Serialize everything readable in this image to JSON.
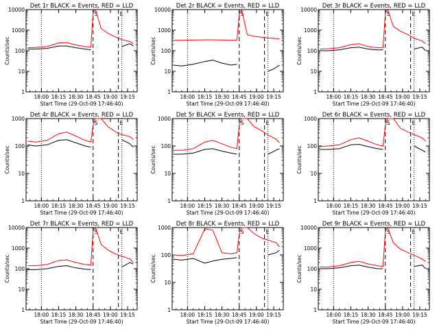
{
  "colors": {
    "events": "#000000",
    "lld": "#ff0000",
    "axis": "#000000",
    "background": "#ffffff"
  },
  "panels_shared": {
    "xlabel": "Start Time (29-Oct-09 17:46:40)",
    "ylabel": "Counts/sec",
    "x_tick_labels": [
      "18:00",
      "18:15",
      "18:30",
      "18:45",
      "19:00",
      "19:15"
    ],
    "y_tick_labels": [
      "1",
      "10",
      "100",
      "1000",
      "10000"
    ],
    "saa_markers": [
      "S",
      "E"
    ]
  },
  "chart_data": [
    {
      "type": "line",
      "title": "Det 1r BLACK = Events, RED = LLD",
      "ylim": [
        1,
        10000
      ],
      "yscale": "log",
      "xlim": [
        "17:46:40",
        "19:23:20"
      ],
      "x": [
        "17:48",
        "17:55",
        "18:05",
        "18:15",
        "18:22",
        "18:30",
        "18:38",
        "18:43",
        "18:45",
        "18:47",
        "18:52",
        "18:58",
        "19:05",
        "19:10",
        "19:17",
        "19:20"
      ],
      "series": [
        {
          "name": "Events",
          "values": [
            120,
            120,
            130,
            170,
            170,
            140,
            120,
            110,
            null,
            null,
            null,
            null,
            null,
            160,
            220,
            170
          ]
        },
        {
          "name": "LLD",
          "values": [
            140,
            145,
            160,
            240,
            250,
            190,
            160,
            150,
            7000,
            10000,
            1200,
            700,
            450,
            350,
            280,
            220
          ]
        }
      ],
      "dashed_lines": [
        "18:45",
        "19:07"
      ],
      "dotted_lines": [
        "18:00",
        "19:10"
      ]
    },
    {
      "type": "line",
      "title": "Det 2r BLACK = Events, RED = LLD",
      "ylim": [
        1,
        10000
      ],
      "yscale": "log",
      "xlim": [
        "17:46:40",
        "19:23:20"
      ],
      "x": [
        "17:48",
        "17:55",
        "18:05",
        "18:15",
        "18:22",
        "18:30",
        "18:38",
        "18:43",
        "18:45",
        "18:47",
        "18:52",
        "18:58",
        "19:05",
        "19:10",
        "19:15",
        "19:20"
      ],
      "series": [
        {
          "name": "Events",
          "values": [
            20,
            18,
            22,
            30,
            35,
            25,
            20,
            22,
            null,
            null,
            null,
            null,
            null,
            10,
            13,
            20
          ]
        },
        {
          "name": "LLD",
          "values": [
            320,
            320,
            330,
            340,
            340,
            330,
            320,
            330,
            6000,
            10000,
            600,
            500,
            450,
            420,
            400,
            380
          ]
        }
      ],
      "dashed_lines": [
        "18:45",
        "19:07"
      ],
      "dotted_lines": [
        "18:00",
        "19:10"
      ]
    },
    {
      "type": "line",
      "title": "Det 3r BLACK = Events, RED = LLD",
      "ylim": [
        1,
        10000
      ],
      "yscale": "log",
      "xlim": [
        "17:46:40",
        "19:23:20"
      ],
      "x": [
        "17:48",
        "17:55",
        "18:05",
        "18:15",
        "18:22",
        "18:30",
        "18:38",
        "18:43",
        "18:45",
        "18:47",
        "18:52",
        "18:58",
        "19:05",
        "19:10",
        "19:17",
        "19:20"
      ],
      "series": [
        {
          "name": "Events",
          "values": [
            100,
            100,
            110,
            140,
            150,
            120,
            110,
            110,
            null,
            null,
            null,
            null,
            null,
            120,
            150,
            100
          ]
        },
        {
          "name": "LLD",
          "values": [
            120,
            125,
            140,
            200,
            220,
            160,
            140,
            140,
            7000,
            10000,
            1500,
            900,
            600,
            400,
            300,
            220
          ]
        }
      ],
      "dashed_lines": [
        "18:45",
        "19:07"
      ],
      "dotted_lines": [
        "18:00",
        "19:10"
      ]
    },
    {
      "type": "line",
      "title": "Det 4r BLACK = Events, RED = LLD",
      "ylim": [
        1,
        1000
      ],
      "yscale": "log",
      "xlim": [
        "17:46:40",
        "19:23:20"
      ],
      "x": [
        "17:48",
        "17:55",
        "18:05",
        "18:15",
        "18:22",
        "18:30",
        "18:38",
        "18:43",
        "18:45",
        "18:47",
        "18:52",
        "18:58",
        "19:05",
        "19:10",
        "19:17",
        "19:20"
      ],
      "series": [
        {
          "name": "Events",
          "values": [
            110,
            100,
            110,
            160,
            170,
            130,
            100,
            90,
            null,
            null,
            null,
            null,
            null,
            170,
            120,
            90
          ]
        },
        {
          "name": "LLD",
          "values": [
            150,
            140,
            160,
            280,
            320,
            230,
            160,
            140,
            600,
            1000,
            1000,
            500,
            320,
            260,
            220,
            170
          ]
        }
      ],
      "dashed_lines": [
        "18:45",
        "19:07"
      ],
      "dotted_lines": [
        "18:00",
        "19:10"
      ]
    },
    {
      "type": "line",
      "title": "Det 5r BLACK = Events, RED = LLD",
      "ylim": [
        1,
        1000
      ],
      "yscale": "log",
      "xlim": [
        "17:46:40",
        "19:23:20"
      ],
      "x": [
        "17:48",
        "17:55",
        "18:05",
        "18:15",
        "18:22",
        "18:30",
        "18:38",
        "18:43",
        "18:45",
        "18:47",
        "18:52",
        "18:58",
        "19:05",
        "19:10",
        "19:17",
        "19:20"
      ],
      "series": [
        {
          "name": "Events",
          "values": [
            50,
            50,
            55,
            75,
            80,
            65,
            55,
            50,
            null,
            null,
            null,
            null,
            null,
            50,
            70,
            80
          ]
        },
        {
          "name": "LLD",
          "values": [
            70,
            70,
            80,
            140,
            160,
            120,
            90,
            80,
            600,
            1000,
            1000,
            500,
            350,
            250,
            180,
            130
          ]
        }
      ],
      "dashed_lines": [
        "18:45",
        "19:07"
      ],
      "dotted_lines": [
        "18:00",
        "19:10"
      ]
    },
    {
      "type": "line",
      "title": "Det 6r BLACK = Events, RED = LLD",
      "ylim": [
        1,
        1000
      ],
      "yscale": "log",
      "xlim": [
        "17:46:40",
        "19:23:20"
      ],
      "x": [
        "17:48",
        "17:55",
        "18:05",
        "18:15",
        "18:22",
        "18:30",
        "18:38",
        "18:43",
        "18:45",
        "18:47",
        "18:52",
        "18:58",
        "19:05",
        "19:10",
        "19:17",
        "19:20"
      ],
      "series": [
        {
          "name": "Events",
          "values": [
            75,
            75,
            80,
            110,
            115,
            95,
            80,
            75,
            null,
            null,
            null,
            null,
            null,
            100,
            70,
            60
          ]
        },
        {
          "name": "LLD",
          "values": [
            95,
            100,
            110,
            170,
            200,
            150,
            110,
            100,
            600,
            1000,
            1000,
            450,
            320,
            260,
            200,
            150
          ]
        }
      ],
      "dashed_lines": [
        "18:45",
        "19:07"
      ],
      "dotted_lines": [
        "18:00",
        "19:10"
      ]
    },
    {
      "type": "line",
      "title": "Det 7r BLACK = Events, RED = LLD",
      "ylim": [
        1,
        10000
      ],
      "yscale": "log",
      "xlim": [
        "17:46:40",
        "19:23:20"
      ],
      "x": [
        "17:48",
        "17:55",
        "18:05",
        "18:15",
        "18:22",
        "18:30",
        "18:38",
        "18:43",
        "18:45",
        "18:47",
        "18:52",
        "18:58",
        "19:05",
        "19:10",
        "19:17",
        "19:20"
      ],
      "series": [
        {
          "name": "Events",
          "values": [
            90,
            90,
            100,
            130,
            140,
            110,
            95,
            90,
            null,
            null,
            null,
            null,
            null,
            120,
            200,
            170
          ]
        },
        {
          "name": "LLD",
          "values": [
            140,
            140,
            160,
            250,
            270,
            200,
            160,
            150,
            7000,
            10000,
            1500,
            800,
            500,
            400,
            300,
            200
          ]
        }
      ],
      "dashed_lines": [
        "18:45",
        "19:07"
      ],
      "dotted_lines": [
        "18:00",
        "19:10"
      ]
    },
    {
      "type": "line",
      "title": "Det 8r BLACK = Events, RED = LLD",
      "ylim": [
        1,
        1000
      ],
      "yscale": "log",
      "xlim": [
        "17:46:40",
        "19:23:20"
      ],
      "x": [
        "17:48",
        "17:55",
        "18:05",
        "18:15",
        "18:22",
        "18:30",
        "18:38",
        "18:43",
        "18:45",
        "18:47",
        "18:52",
        "18:58",
        "19:05",
        "19:10",
        "19:17",
        "19:20"
      ],
      "series": [
        {
          "name": "Events",
          "values": [
            70,
            65,
            75,
            50,
            60,
            70,
            75,
            80,
            null,
            null,
            null,
            null,
            null,
            100,
            120,
            150
          ]
        },
        {
          "name": "LLD",
          "values": [
            100,
            95,
            110,
            900,
            800,
            120,
            110,
            120,
            600,
            1000,
            1000,
            600,
            400,
            350,
            280,
            200
          ]
        }
      ],
      "dashed_lines": [
        "18:45",
        "19:07"
      ],
      "dotted_lines": [
        "18:00",
        "19:10"
      ]
    },
    {
      "type": "line",
      "title": "Det 9r BLACK = Events, RED = LLD",
      "ylim": [
        1,
        10000
      ],
      "yscale": "log",
      "xlim": [
        "17:46:40",
        "19:23:20"
      ],
      "x": [
        "17:48",
        "17:55",
        "18:05",
        "18:15",
        "18:22",
        "18:30",
        "18:38",
        "18:43",
        "18:45",
        "18:47",
        "18:52",
        "18:58",
        "19:05",
        "19:10",
        "19:17",
        "19:20"
      ],
      "series": [
        {
          "name": "Events",
          "values": [
            100,
            100,
            110,
            140,
            150,
            120,
            100,
            100,
            null,
            null,
            null,
            null,
            null,
            130,
            150,
            100
          ]
        },
        {
          "name": "LLD",
          "values": [
            120,
            120,
            140,
            200,
            230,
            170,
            140,
            130,
            7000,
            10000,
            1800,
            900,
            600,
            450,
            300,
            220
          ]
        }
      ],
      "dashed_lines": [
        "18:45",
        "19:07"
      ],
      "dotted_lines": [
        "18:00",
        "19:10"
      ]
    }
  ]
}
